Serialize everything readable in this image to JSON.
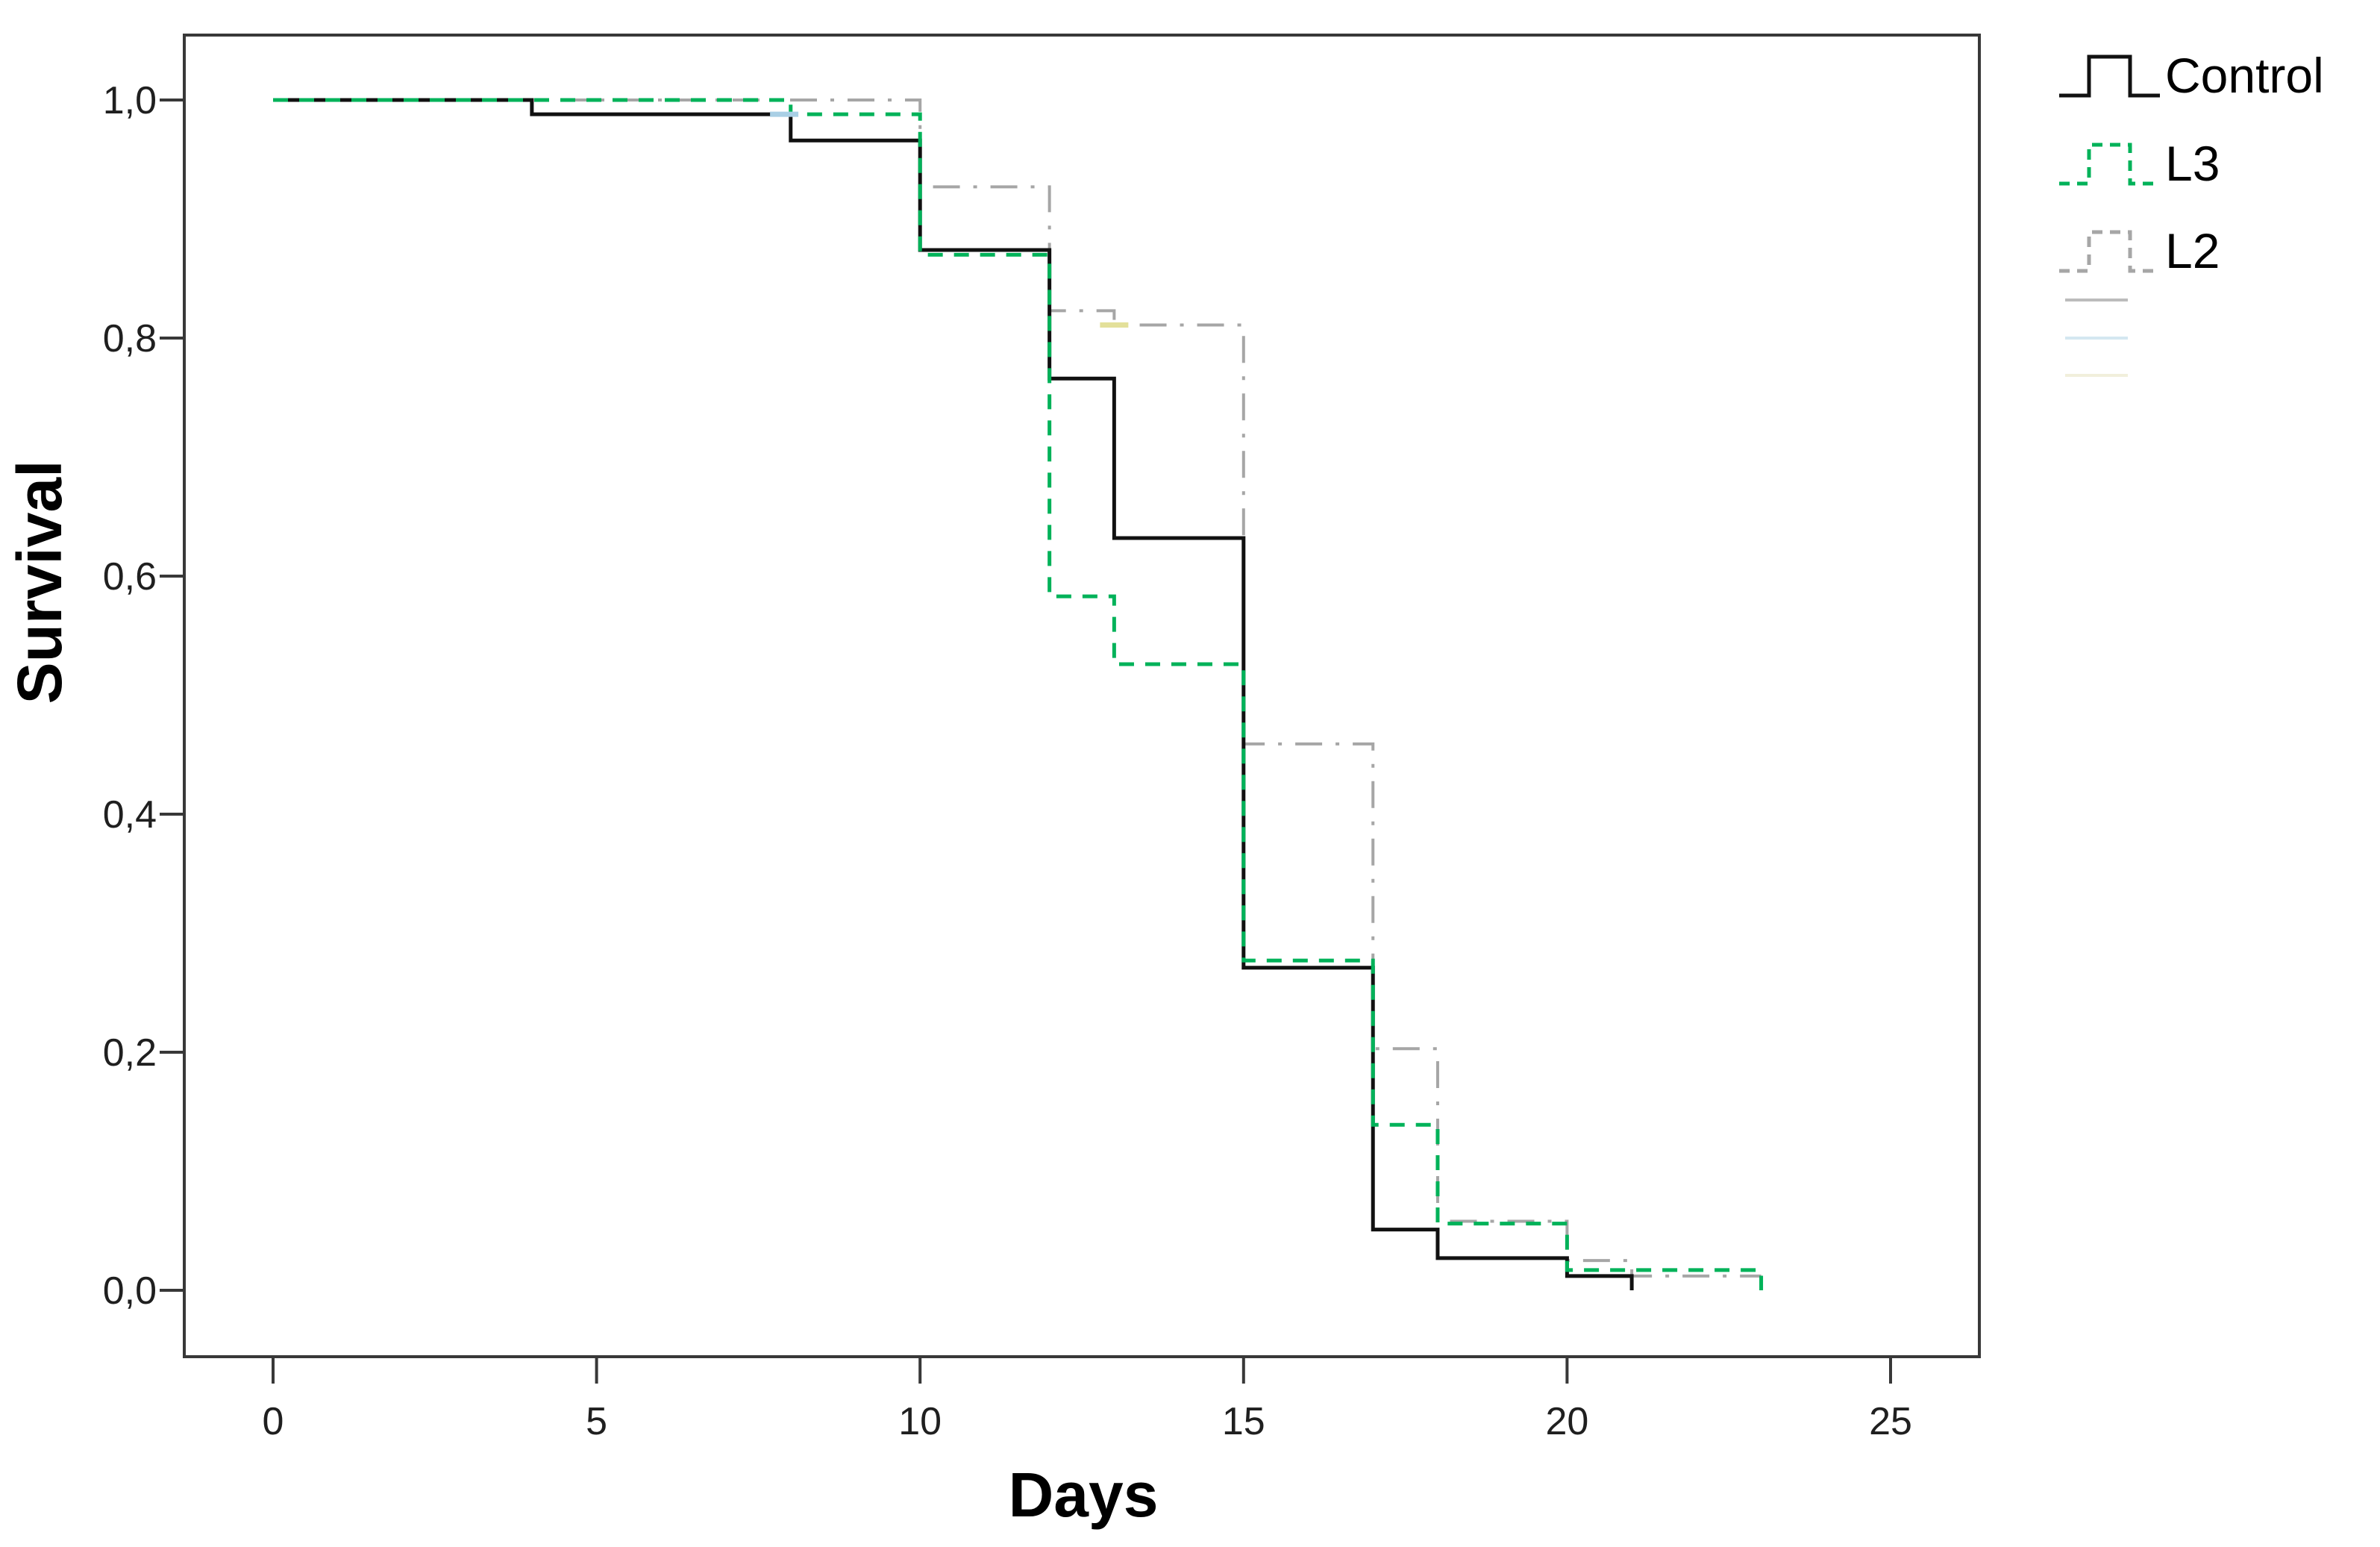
{
  "page": {
    "background": "#ffffff"
  },
  "chart_data": {
    "type": "line",
    "chart_kind": "kaplan-meier-step-survival",
    "title": "",
    "xlabel": "Days",
    "ylabel": "Survival",
    "grid": false,
    "legend_position": "top-right-outside",
    "xlim": [
      -1.4,
      26.4
    ],
    "ylim": [
      -0.056,
      1.055
    ],
    "x_ticks": [
      0,
      5,
      10,
      15,
      20,
      25
    ],
    "x_tick_labels": [
      "0",
      "5",
      "10",
      "15",
      "20",
      "25"
    ],
    "y_ticks": [
      1.0,
      0.8,
      0.6,
      0.4,
      0.2,
      0.0
    ],
    "y_tick_labels": [
      "1,0",
      "0,8",
      "0,6",
      "0,4",
      "0,2",
      "0,0"
    ],
    "axis_color": "#383838",
    "series": [
      {
        "name": "L2",
        "color": "#a6a6a6",
        "style": "dash-dot",
        "stroke_width": 4,
        "points": [
          [
            0,
            1.0
          ],
          [
            10,
            0.927
          ],
          [
            12,
            0.823
          ],
          [
            13,
            0.811
          ],
          [
            15,
            0.459
          ],
          [
            17,
            0.203
          ],
          [
            18,
            0.058
          ],
          [
            20,
            0.025
          ],
          [
            21,
            0.012
          ],
          [
            23,
            0.012
          ]
        ]
      },
      {
        "name": "Control",
        "color": "#111111",
        "style": "solid",
        "stroke_width": 5,
        "points": [
          [
            0,
            1.0
          ],
          [
            4,
            0.988
          ],
          [
            8,
            0.966
          ],
          [
            10,
            0.874
          ],
          [
            12,
            0.766
          ],
          [
            13,
            0.632
          ],
          [
            15,
            0.271
          ],
          [
            17,
            0.051
          ],
          [
            18,
            0.027
          ],
          [
            20,
            0.012
          ],
          [
            21,
            0.0
          ]
        ]
      },
      {
        "name": "L3",
        "color": "#00b259",
        "style": "dashed",
        "stroke_width": 5,
        "points": [
          [
            0,
            1.0
          ],
          [
            8,
            0.988
          ],
          [
            10,
            0.87
          ],
          [
            12,
            0.583
          ],
          [
            13,
            0.526
          ],
          [
            15,
            0.277
          ],
          [
            17,
            0.139
          ],
          [
            18,
            0.056
          ],
          [
            20,
            0.017
          ],
          [
            23,
            0.0
          ]
        ]
      }
    ],
    "censor_marks": [
      {
        "series": "Control",
        "x": 7.9,
        "y": 0.988,
        "color": "#a9cfe5"
      },
      {
        "series": "L2",
        "x": 13.0,
        "y": 0.811,
        "color": "#e3e09a"
      }
    ]
  },
  "legend": {
    "items": [
      {
        "label": "Control",
        "swatch": "step",
        "color": "#111111",
        "style": "solid"
      },
      {
        "label": "L3",
        "swatch": "step",
        "color": "#00b259",
        "style": "dashed"
      },
      {
        "label": "L2",
        "swatch": "step",
        "color": "#a6a6a6",
        "style": "dash-dot"
      },
      {
        "label": "",
        "swatch": "line",
        "color": "#bcbcbc",
        "style": "solid"
      },
      {
        "label": "",
        "swatch": "line",
        "color": "#d4e7f1",
        "style": "solid"
      },
      {
        "label": "",
        "swatch": "line",
        "color": "#f1efdc",
        "style": "solid"
      }
    ]
  }
}
